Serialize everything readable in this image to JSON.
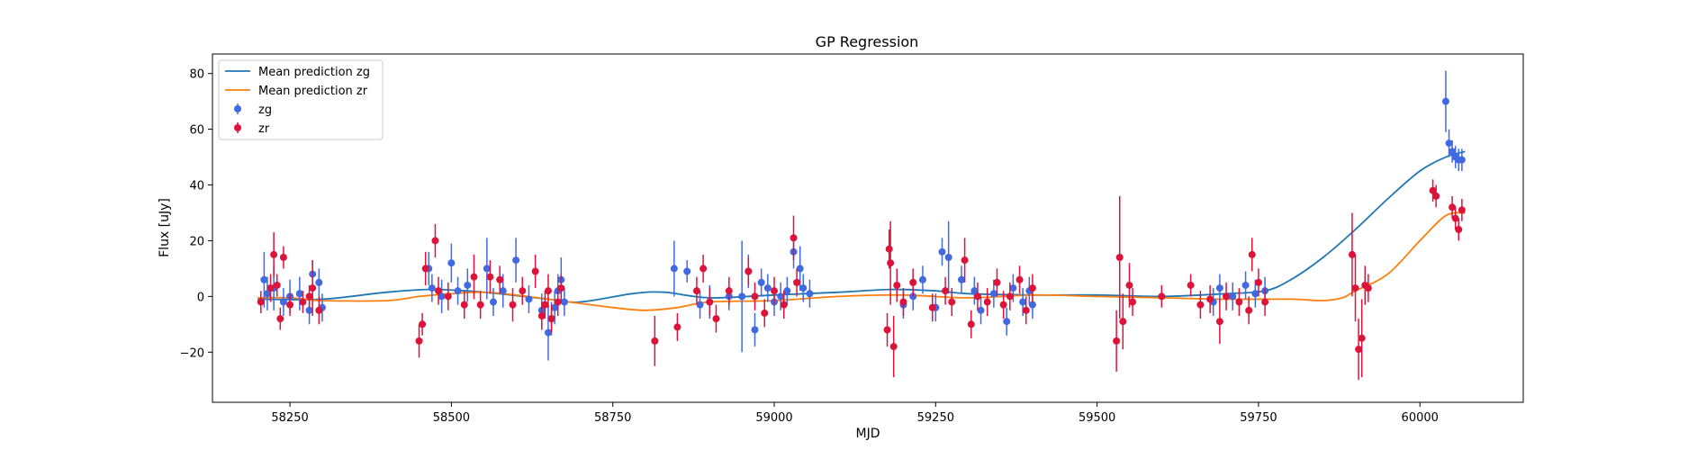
{
  "chart_data": {
    "type": "scatter",
    "title": "GP Regression",
    "xlabel": "MJD",
    "ylabel": "Flux [uJy]",
    "xlim": [
      58130,
      60160
    ],
    "ylim": [
      -38,
      87
    ],
    "xticks": [
      58250,
      58500,
      58750,
      59000,
      59250,
      59500,
      59750,
      60000
    ],
    "yticks": [
      -20,
      0,
      20,
      40,
      60,
      80
    ],
    "grid": false,
    "legend_position": "top-left",
    "colors": {
      "mean_zg": "#1f77b4",
      "mean_zr": "#ff7f0e",
      "points_zg": "#4169e1",
      "points_zr": "#dc143c"
    },
    "lines": [
      {
        "name": "Mean prediction zg",
        "x": [
          58200,
          58300,
          58400,
          58470,
          58550,
          58650,
          58700,
          58780,
          58830,
          58900,
          59000,
          59100,
          59180,
          59250,
          59300,
          59400,
          59500,
          59600,
          59700,
          59760,
          59800,
          59850,
          59900,
          59950,
          60000,
          60040,
          60070
        ],
        "y": [
          -1,
          -1,
          1.5,
          2.5,
          1.5,
          -1,
          -2,
          1,
          1.5,
          -0.5,
          0.5,
          1.5,
          2.5,
          2,
          1,
          0.5,
          0.5,
          0,
          1,
          2,
          6,
          14,
          24,
          35,
          45,
          50,
          52
        ]
      },
      {
        "name": "Mean prediction zr",
        "x": [
          58200,
          58250,
          58300,
          58400,
          58450,
          58500,
          58550,
          58600,
          58650,
          58700,
          58750,
          58800,
          58850,
          58900,
          59000,
          59100,
          59200,
          59300,
          59400,
          59500,
          59600,
          59700,
          59800,
          59850,
          59880,
          59900,
          59950,
          60000,
          60040,
          60070
        ],
        "y": [
          -0.5,
          -0.5,
          -1.5,
          -1.5,
          0,
          1,
          1.5,
          0.5,
          -1,
          -2.5,
          -4,
          -5,
          -4,
          -2,
          -1.5,
          0,
          0.5,
          -0.5,
          0.5,
          0,
          -0.5,
          -1,
          -1,
          -1.5,
          -0.5,
          2,
          8,
          20,
          29,
          30
        ]
      }
    ],
    "series": [
      {
        "name": "zg",
        "x": [
          58210,
          58215,
          58225,
          58240,
          58250,
          58265,
          58280,
          58285,
          58295,
          58300,
          58465,
          58470,
          58485,
          58500,
          58510,
          58525,
          58555,
          58565,
          58580,
          58600,
          58620,
          58640,
          58650,
          58655,
          58660,
          58665,
          58670,
          58675,
          58845,
          58865,
          58885,
          58900,
          58930,
          58950,
          58960,
          58970,
          58980,
          58990,
          59000,
          59010,
          59020,
          59030,
          59040,
          59045,
          59055,
          59200,
          59215,
          59230,
          59250,
          59260,
          59270,
          59290,
          59310,
          59320,
          59340,
          59360,
          59370,
          59385,
          59395,
          59400,
          59680,
          59690,
          59710,
          59730,
          59745,
          59760,
          60040,
          60045,
          60050,
          60055,
          60060,
          60065
        ],
        "y": [
          6,
          1,
          3,
          -2,
          0,
          1,
          -5,
          8,
          5,
          -4,
          10,
          3,
          0,
          12,
          2,
          4,
          10,
          -2,
          2,
          13,
          -1,
          -5,
          -13,
          -8,
          -4,
          2,
          6,
          -2,
          10,
          9,
          -3,
          -2,
          0,
          0,
          9,
          -12,
          5,
          3,
          -2,
          0,
          2,
          16,
          10,
          3,
          1,
          -3,
          0,
          6,
          -4,
          16,
          14,
          6,
          2,
          -5,
          1,
          -9,
          3,
          -2,
          2,
          -3,
          -2,
          3,
          0,
          4,
          1,
          2,
          70,
          55,
          52,
          50,
          49,
          49
        ],
        "yerr": [
          10,
          6,
          8,
          5,
          6,
          6,
          5,
          5,
          5,
          5,
          6,
          5,
          6,
          7,
          5,
          6,
          11,
          5,
          6,
          8,
          5,
          6,
          10,
          6,
          6,
          6,
          8,
          5,
          10,
          4,
          5,
          6,
          5,
          20,
          6,
          6,
          5,
          5,
          5,
          5,
          5,
          6,
          8,
          5,
          5,
          5,
          5,
          5,
          5,
          5,
          13,
          5,
          5,
          5,
          5,
          5,
          5,
          5,
          5,
          5,
          5,
          5,
          5,
          5,
          5,
          5,
          11,
          5,
          4,
          4,
          4,
          4
        ]
      },
      {
        "name": "zr",
        "x": [
          58205,
          58220,
          58225,
          58230,
          58235,
          58240,
          58250,
          58270,
          58280,
          58285,
          58295,
          58450,
          58455,
          58460,
          58475,
          58480,
          58495,
          58520,
          58535,
          58545,
          58560,
          58575,
          58595,
          58610,
          58630,
          58640,
          58645,
          58650,
          58655,
          58665,
          58670,
          58815,
          58850,
          58880,
          58890,
          58900,
          58910,
          58930,
          58960,
          58970,
          58985,
          59000,
          59015,
          59030,
          59035,
          59175,
          59178,
          59180,
          59185,
          59190,
          59200,
          59215,
          59245,
          59265,
          59275,
          59295,
          59305,
          59315,
          59330,
          59345,
          59355,
          59365,
          59380,
          59390,
          59400,
          59530,
          59535,
          59540,
          59550,
          59555,
          59600,
          59645,
          59660,
          59675,
          59690,
          59700,
          59720,
          59735,
          59740,
          59750,
          59760,
          59895,
          59900,
          59905,
          59910,
          59915,
          59920,
          60020,
          60025,
          60050,
          60055,
          60060,
          60065
        ],
        "y": [
          -2,
          3,
          15,
          4,
          -8,
          14,
          -3,
          -2,
          0,
          3,
          -5,
          -16,
          -10,
          10,
          20,
          2,
          0,
          -3,
          7,
          -3,
          7,
          6,
          -3,
          2,
          9,
          -7,
          -3,
          2,
          -8,
          -2,
          3,
          -16,
          -11,
          2,
          10,
          -2,
          -8,
          2,
          9,
          0,
          -6,
          2,
          -3,
          21,
          5,
          -12,
          17,
          12,
          -18,
          4,
          -2,
          5,
          -4,
          2,
          -2,
          13,
          -10,
          0,
          -2,
          5,
          -3,
          0,
          6,
          -5,
          3,
          -16,
          14,
          -9,
          4,
          -2,
          0,
          4,
          -3,
          -1,
          -9,
          0,
          -2,
          -5,
          15,
          5,
          -2,
          15,
          3,
          -19,
          -15,
          4,
          3,
          38,
          36,
          32,
          28,
          24,
          31
        ],
        "yerr": [
          4,
          5,
          8,
          4,
          4,
          4,
          4,
          4,
          4,
          10,
          5,
          6,
          4,
          6,
          6,
          5,
          5,
          5,
          8,
          5,
          6,
          5,
          6,
          5,
          6,
          5,
          5,
          6,
          5,
          5,
          5,
          9,
          5,
          5,
          5,
          5,
          5,
          5,
          5,
          5,
          5,
          5,
          5,
          8,
          5,
          6,
          7,
          15,
          11,
          6,
          5,
          5,
          5,
          5,
          5,
          8,
          5,
          5,
          5,
          5,
          5,
          5,
          5,
          5,
          5,
          11,
          22,
          10,
          8,
          5,
          4,
          4,
          5,
          5,
          8,
          5,
          5,
          5,
          6,
          5,
          5,
          15,
          12,
          11,
          14,
          7,
          5,
          4,
          4,
          4,
          4,
          4,
          4
        ]
      }
    ]
  }
}
